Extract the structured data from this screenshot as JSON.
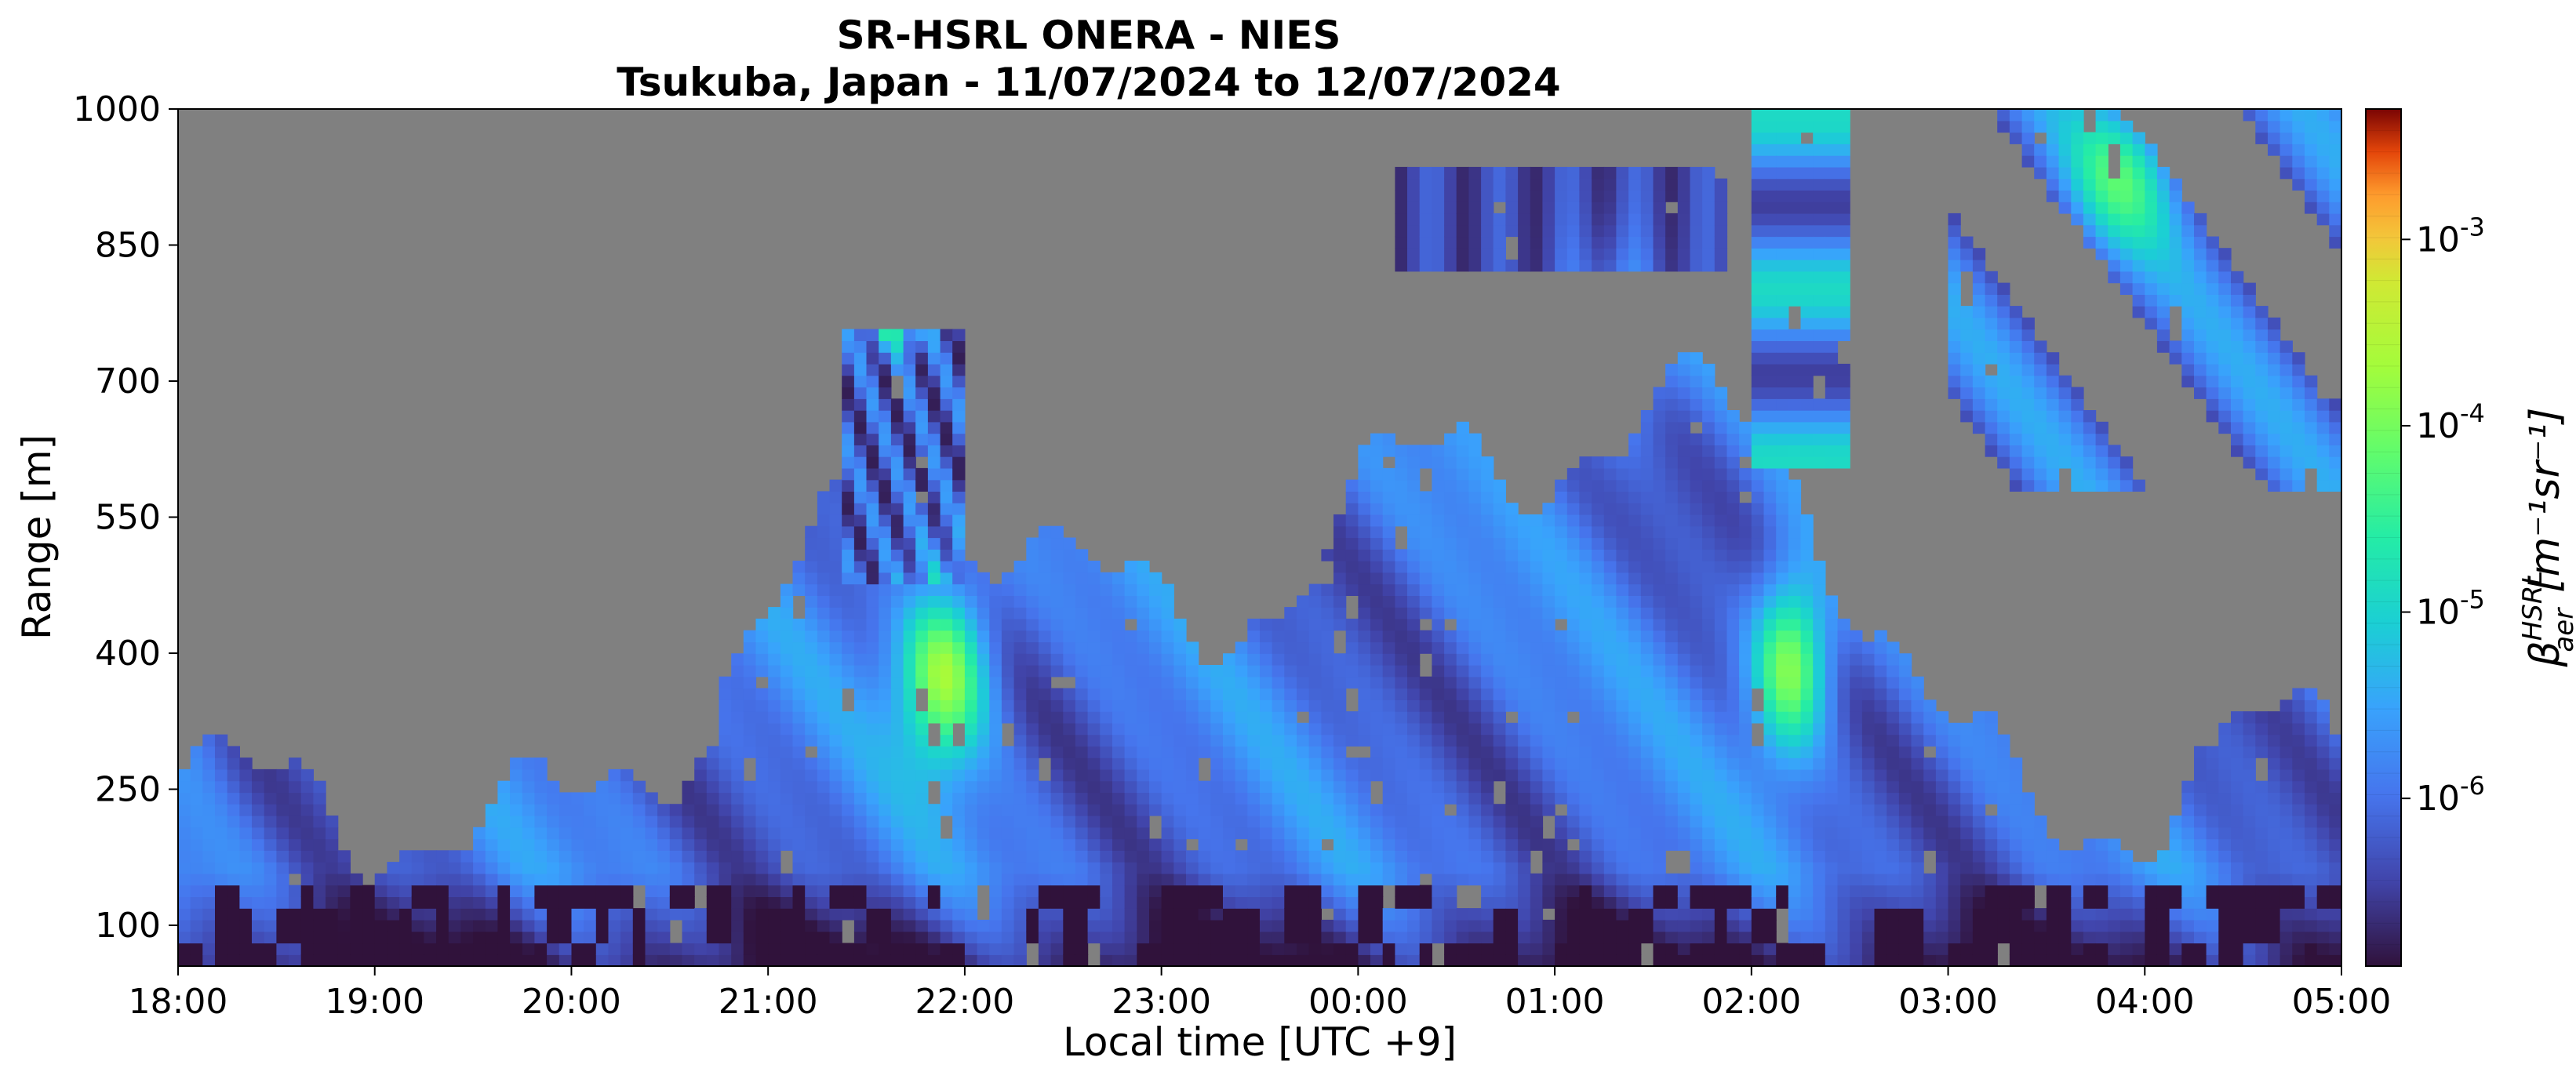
{
  "chart_data": {
    "type": "heatmap",
    "title": "SR-HSRL ONERA - NIES",
    "subtitle": "Tsukuba, Japan - 11/07/2024 to 12/07/2024",
    "xlabel": "Local time [UTC +9]",
    "ylabel": "Range [m]",
    "colorbar_label_base": "β",
    "colorbar_label_sup": "HSRL",
    "colorbar_label_sub": "aer",
    "colorbar_label_units": "[m⁻¹sr⁻¹]",
    "x_ticks": [
      "18:00",
      "19:00",
      "20:00",
      "21:00",
      "22:00",
      "23:00",
      "00:00",
      "01:00",
      "02:00",
      "03:00",
      "04:00",
      "05:00"
    ],
    "y_ticks": [
      "100",
      "250",
      "400",
      "550",
      "700",
      "850",
      "1000"
    ],
    "y_tick_values": [
      100,
      250,
      400,
      550,
      700,
      850,
      1000
    ],
    "ylim": [
      55,
      1000
    ],
    "xlim_hours": [
      0,
      11
    ],
    "colorbar_ticks": [
      {
        "base": "10",
        "exp": "-6",
        "log": -6
      },
      {
        "base": "10",
        "exp": "-5",
        "log": -5
      },
      {
        "base": "10",
        "exp": "-4",
        "log": -4
      },
      {
        "base": "10",
        "exp": "-3",
        "log": -3
      }
    ],
    "colorbar_log_range": [
      -6.9,
      -2.3
    ],
    "colormap": "turbo",
    "no_data_color": "#808080",
    "grid": false
  }
}
